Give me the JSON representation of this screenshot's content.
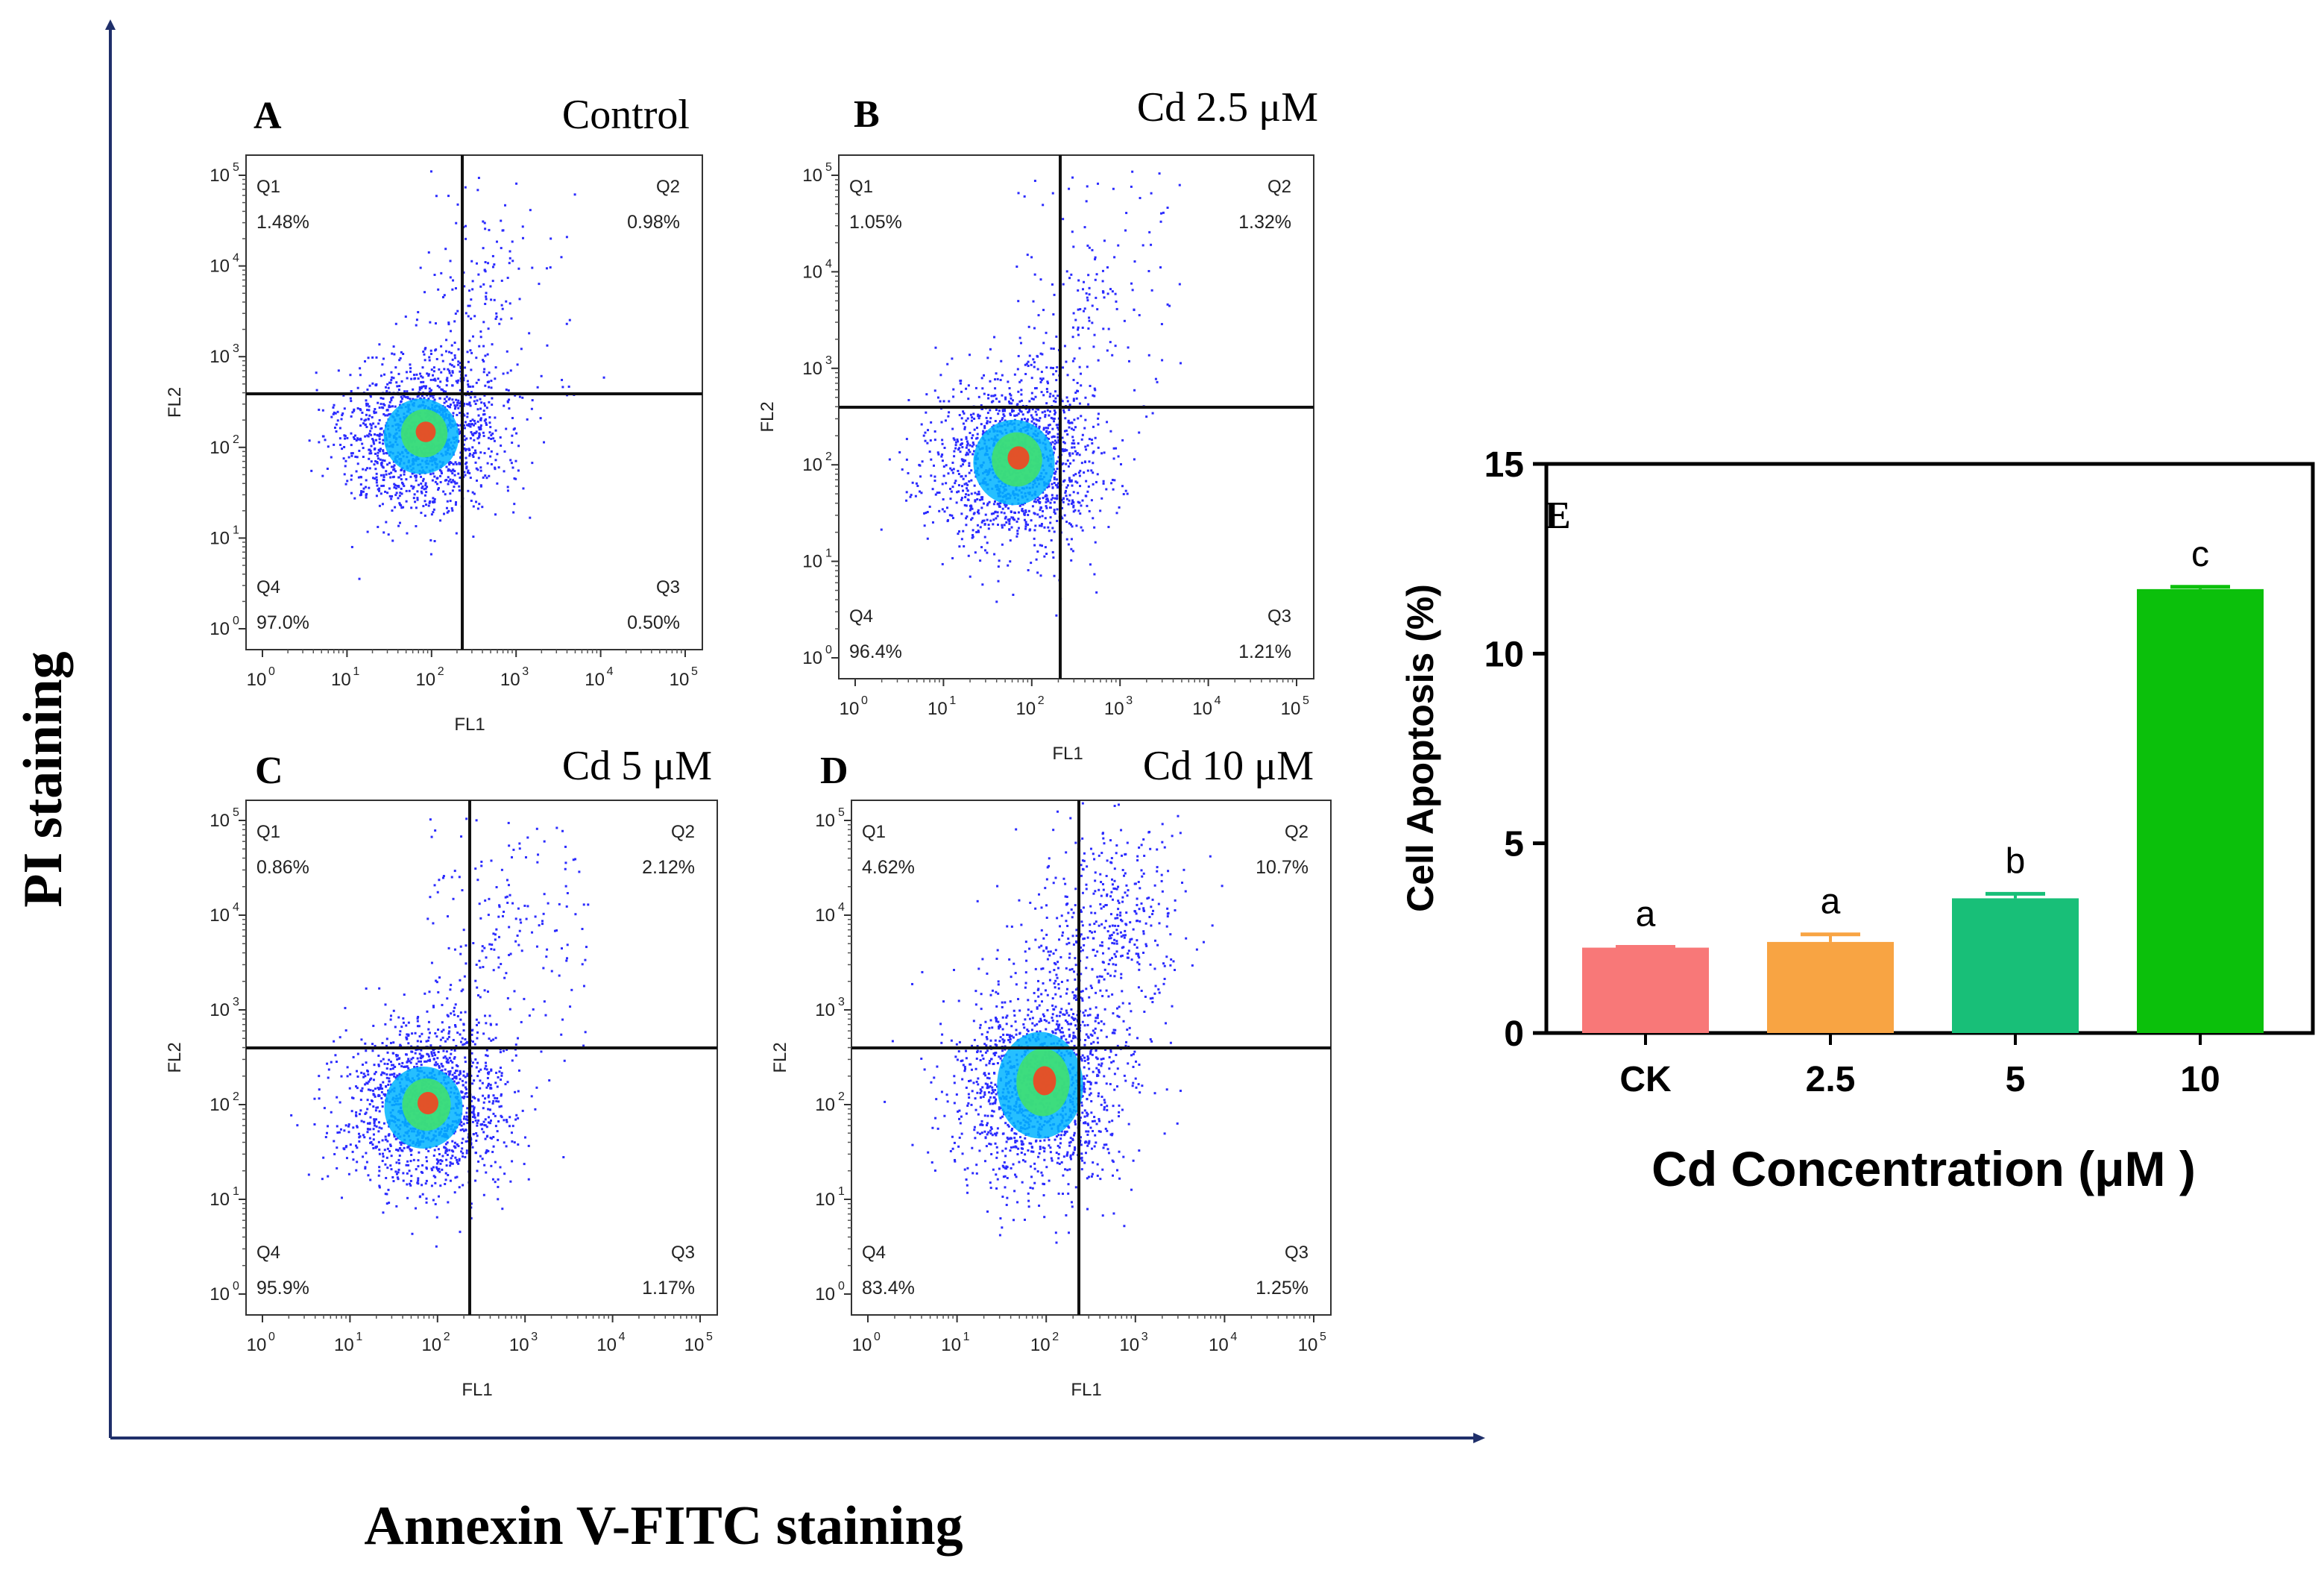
{
  "figure": {
    "y_axis_title": "PI staining",
    "x_axis_title": "Annexin V-FITC staining"
  },
  "colors": {
    "axis": "#1f2f6a",
    "dot": "#2b2bff",
    "core_dense": "#00b4ff",
    "core_mid": "#40e070",
    "core_hot": "#ff3a1a",
    "bar_ck": "#f87878",
    "bar_25": "#f8a443",
    "bar_5": "#18bf78",
    "bar_10": "#0bc00b"
  },
  "flow_panels": [
    {
      "letter": "A",
      "title": "Control",
      "x_label": "FL1",
      "y_label": "FL2",
      "ticks": [
        "10",
        "10",
        "10",
        "10",
        "10",
        "10"
      ],
      "exps": [
        "0",
        "1",
        "2",
        "3",
        "4",
        "5"
      ],
      "quadrants": [
        {
          "name": "Q1",
          "value": "1.48%"
        },
        {
          "name": "Q2",
          "value": "0.98%"
        },
        {
          "name": "Q3",
          "value": "0.50%"
        },
        {
          "name": "Q4",
          "value": "97.0%"
        }
      ]
    },
    {
      "letter": "B",
      "title": "Cd 2.5 μM",
      "x_label": "FL1",
      "y_label": "FL2",
      "ticks": [
        "10",
        "10",
        "10",
        "10",
        "10",
        "10"
      ],
      "exps": [
        "0",
        "1",
        "2",
        "3",
        "4",
        "5"
      ],
      "quadrants": [
        {
          "name": "Q1",
          "value": "1.05%"
        },
        {
          "name": "Q2",
          "value": "1.32%"
        },
        {
          "name": "Q3",
          "value": "1.21%"
        },
        {
          "name": "Q4",
          "value": "96.4%"
        }
      ]
    },
    {
      "letter": "C",
      "title": "Cd 5 μM",
      "x_label": "FL1",
      "y_label": "FL2",
      "ticks": [
        "10",
        "10",
        "10",
        "10",
        "10",
        "10"
      ],
      "exps": [
        "0",
        "1",
        "2",
        "3",
        "4",
        "5"
      ],
      "quadrants": [
        {
          "name": "Q1",
          "value": "0.86%"
        },
        {
          "name": "Q2",
          "value": "2.12%"
        },
        {
          "name": "Q3",
          "value": "1.17%"
        },
        {
          "name": "Q4",
          "value": "95.9%"
        }
      ]
    },
    {
      "letter": "D",
      "title": "Cd 10 μM",
      "x_label": "FL1",
      "y_label": "FL2",
      "ticks": [
        "10",
        "10",
        "10",
        "10",
        "10",
        "10"
      ],
      "exps": [
        "0",
        "1",
        "2",
        "3",
        "4",
        "5"
      ],
      "quadrants": [
        {
          "name": "Q1",
          "value": "4.62%"
        },
        {
          "name": "Q2",
          "value": "10.7%"
        },
        {
          "name": "Q3",
          "value": "1.25%"
        },
        {
          "name": "Q4",
          "value": "83.4%"
        }
      ]
    }
  ],
  "chart_data": {
    "type": "bar",
    "panel_letter": "E",
    "categories": [
      "CK",
      "2.5",
      "5",
      "10"
    ],
    "values": [
      2.25,
      2.4,
      3.55,
      11.7
    ],
    "errors": [
      0.02,
      0.2,
      0.12,
      0.06
    ],
    "significance": [
      "a",
      "a",
      "b",
      "c"
    ],
    "xlabel": "Cd Concentration (μM )",
    "ylabel": "Cell Apoptosis (%)",
    "ylim": [
      0,
      15
    ],
    "yticks": [
      "0",
      "5",
      "10",
      "15"
    ]
  }
}
